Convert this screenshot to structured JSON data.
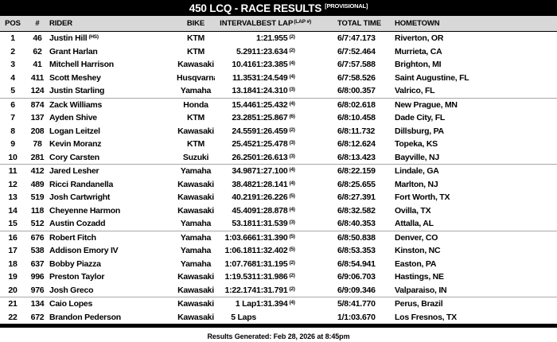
{
  "title": {
    "main": "450 LCQ - RACE RESULTS",
    "tag": "[PROVISIONAL]"
  },
  "columns": [
    {
      "key": "pos",
      "label": "POS"
    },
    {
      "key": "num",
      "label": "#"
    },
    {
      "key": "rider",
      "label": "RIDER"
    },
    {
      "key": "bike",
      "label": "BIKE"
    },
    {
      "key": "interval",
      "label": "INTERVAL"
    },
    {
      "key": "best_lap",
      "label": "BEST LAP",
      "label_sup": "(LAP #)"
    },
    {
      "key": "total_time",
      "label": "TOTAL TIME"
    },
    {
      "key": "hometown",
      "label": "HOMETOWN"
    }
  ],
  "rows": [
    {
      "pos": "1",
      "num": "46",
      "rider": "Justin Hill",
      "rider_sup": "(HS)",
      "bike": "KTM",
      "interval": "",
      "best_lap": "1:21.955",
      "best_lap_num": "(2)",
      "total_time": "6/7:47.173",
      "hometown": "Riverton, OR"
    },
    {
      "pos": "2",
      "num": "62",
      "rider": "Grant Harlan",
      "rider_sup": "",
      "bike": "KTM",
      "interval": "5.291",
      "best_lap": "1:23.634",
      "best_lap_num": "(2)",
      "total_time": "6/7:52.464",
      "hometown": "Murrieta, CA"
    },
    {
      "pos": "3",
      "num": "41",
      "rider": "Mitchell Harrison",
      "rider_sup": "",
      "bike": "Kawasaki",
      "interval": "10.416",
      "best_lap": "1:23.385",
      "best_lap_num": "(4)",
      "total_time": "6/7:57.588",
      "hometown": "Brighton, MI"
    },
    {
      "pos": "4",
      "num": "411",
      "rider": "Scott Meshey",
      "rider_sup": "",
      "bike": "Husqvarna",
      "interval": "11.353",
      "best_lap": "1:24.549",
      "best_lap_num": "(4)",
      "total_time": "6/7:58.526",
      "hometown": "Saint Augustine, FL"
    },
    {
      "pos": "5",
      "num": "124",
      "rider": "Justin Starling",
      "rider_sup": "",
      "bike": "Yamaha",
      "interval": "13.184",
      "best_lap": "1:24.310",
      "best_lap_num": "(3)",
      "total_time": "6/8:00.357",
      "hometown": "Valrico, FL"
    },
    {
      "pos": "6",
      "num": "874",
      "rider": "Zack Williams",
      "rider_sup": "",
      "bike": "Honda",
      "interval": "15.446",
      "best_lap": "1:25.432",
      "best_lap_num": "(4)",
      "total_time": "6/8:02.618",
      "hometown": "New Prague, MN"
    },
    {
      "pos": "7",
      "num": "137",
      "rider": "Ayden Shive",
      "rider_sup": "",
      "bike": "KTM",
      "interval": "23.285",
      "best_lap": "1:25.867",
      "best_lap_num": "(6)",
      "total_time": "6/8:10.458",
      "hometown": "Dade City, FL"
    },
    {
      "pos": "8",
      "num": "208",
      "rider": "Logan Leitzel",
      "rider_sup": "",
      "bike": "Kawasaki",
      "interval": "24.559",
      "best_lap": "1:26.459",
      "best_lap_num": "(2)",
      "total_time": "6/8:11.732",
      "hometown": "Dillsburg, PA"
    },
    {
      "pos": "9",
      "num": "78",
      "rider": "Kevin Moranz",
      "rider_sup": "",
      "bike": "KTM",
      "interval": "25.452",
      "best_lap": "1:25.478",
      "best_lap_num": "(3)",
      "total_time": "6/8:12.624",
      "hometown": "Topeka, KS"
    },
    {
      "pos": "10",
      "num": "281",
      "rider": "Cory Carsten",
      "rider_sup": "",
      "bike": "Suzuki",
      "interval": "26.250",
      "best_lap": "1:26.613",
      "best_lap_num": "(3)",
      "total_time": "6/8:13.423",
      "hometown": "Bayville, NJ"
    },
    {
      "pos": "11",
      "num": "412",
      "rider": "Jared Lesher",
      "rider_sup": "",
      "bike": "Yamaha",
      "interval": "34.987",
      "best_lap": "1:27.100",
      "best_lap_num": "(4)",
      "total_time": "6/8:22.159",
      "hometown": "Lindale, GA"
    },
    {
      "pos": "12",
      "num": "489",
      "rider": "Ricci Randanella",
      "rider_sup": "",
      "bike": "Kawasaki",
      "interval": "38.482",
      "best_lap": "1:28.141",
      "best_lap_num": "(4)",
      "total_time": "6/8:25.655",
      "hometown": "Marlton, NJ"
    },
    {
      "pos": "13",
      "num": "519",
      "rider": "Josh Cartwright",
      "rider_sup": "",
      "bike": "Kawasaki",
      "interval": "40.219",
      "best_lap": "1:26.226",
      "best_lap_num": "(5)",
      "total_time": "6/8:27.391",
      "hometown": "Fort Worth, TX"
    },
    {
      "pos": "14",
      "num": "118",
      "rider": "Cheyenne Harmon",
      "rider_sup": "",
      "bike": "Kawasaki",
      "interval": "45.409",
      "best_lap": "1:28.878",
      "best_lap_num": "(4)",
      "total_time": "6/8:32.582",
      "hometown": "Ovilla, TX"
    },
    {
      "pos": "15",
      "num": "512",
      "rider": "Austin Cozadd",
      "rider_sup": "",
      "bike": "Yamaha",
      "interval": "53.181",
      "best_lap": "1:31.539",
      "best_lap_num": "(3)",
      "total_time": "6/8:40.353",
      "hometown": "Attalla, AL"
    },
    {
      "pos": "16",
      "num": "676",
      "rider": "Robert Fitch",
      "rider_sup": "",
      "bike": "Yamaha",
      "interval": "1:03.666",
      "best_lap": "1:31.390",
      "best_lap_num": "(5)",
      "total_time": "6/8:50.838",
      "hometown": "Denver, CO"
    },
    {
      "pos": "17",
      "num": "538",
      "rider": "Addison Emory IV",
      "rider_sup": "",
      "bike": "Yamaha",
      "interval": "1:06.181",
      "best_lap": "1:32.402",
      "best_lap_num": "(5)",
      "total_time": "6/8:53.353",
      "hometown": "Kinston, NC"
    },
    {
      "pos": "18",
      "num": "637",
      "rider": "Bobby Piazza",
      "rider_sup": "",
      "bike": "Yamaha",
      "interval": "1:07.768",
      "best_lap": "1:31.195",
      "best_lap_num": "(2)",
      "total_time": "6/8:54.941",
      "hometown": "Easton, PA"
    },
    {
      "pos": "19",
      "num": "996",
      "rider": "Preston Taylor",
      "rider_sup": "",
      "bike": "Kawasaki",
      "interval": "1:19.531",
      "best_lap": "1:31.986",
      "best_lap_num": "(2)",
      "total_time": "6/9:06.703",
      "hometown": "Hastings, NE"
    },
    {
      "pos": "20",
      "num": "976",
      "rider": "Josh Greco",
      "rider_sup": "",
      "bike": "Kawasaki",
      "interval": "1:22.174",
      "best_lap": "1:31.791",
      "best_lap_num": "(2)",
      "total_time": "6/9:09.346",
      "hometown": "Valparaiso, IN"
    },
    {
      "pos": "21",
      "num": "134",
      "rider": "Caio Lopes",
      "rider_sup": "",
      "bike": "Kawasaki",
      "interval": "1 Lap",
      "best_lap": "1:31.394",
      "best_lap_num": "(4)",
      "total_time": "5/8:41.770",
      "hometown": "Perus, Brazil"
    },
    {
      "pos": "22",
      "num": "672",
      "rider": "Brandon Pederson",
      "rider_sup": "",
      "bike": "Kawasaki",
      "interval": "5 Laps",
      "best_lap": "",
      "best_lap_num": "",
      "total_time": "1/1:03.670",
      "hometown": "Los Fresnos, TX"
    }
  ],
  "footer": {
    "generated": "Results Generated: Feb 28, 2026 at 8:45pm"
  }
}
